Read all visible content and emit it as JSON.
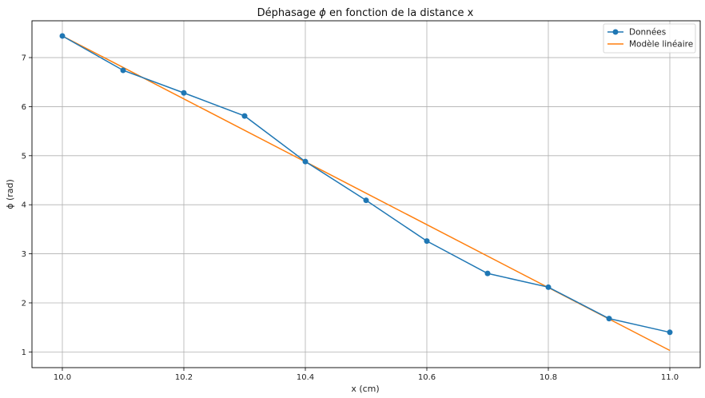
{
  "chart_data": {
    "type": "line",
    "title_prefix": "Déphasage ",
    "title_symbol": "ϕ",
    "title_suffix": " en fonction de la distance x",
    "xlabel": "x (cm)",
    "ylabel": "ϕ (rad)",
    "xlim": [
      9.95,
      11.05
    ],
    "ylim": [
      0.68,
      7.75
    ],
    "xticks": [
      10.0,
      10.2,
      10.4,
      10.6,
      10.8,
      11.0
    ],
    "xtick_labels": [
      "10.0",
      "10.2",
      "10.4",
      "10.6",
      "10.8",
      "11.0"
    ],
    "yticks": [
      1,
      2,
      3,
      4,
      5,
      6,
      7
    ],
    "ytick_labels": [
      "1",
      "2",
      "3",
      "4",
      "5",
      "6",
      "7"
    ],
    "grid": true,
    "legend_position": "top-right",
    "series": [
      {
        "name": "Données",
        "color": "#1f77b4",
        "marker": "circle",
        "x": [
          10.0,
          10.1,
          10.2,
          10.3,
          10.4,
          10.5,
          10.6,
          10.7,
          10.8,
          10.9,
          11.0
        ],
        "y": [
          7.44,
          6.74,
          6.28,
          5.81,
          4.88,
          4.09,
          3.26,
          2.6,
          2.32,
          1.68,
          1.4
        ]
      },
      {
        "name": "Modèle linéaire",
        "color": "#ff7f0e",
        "marker": "none",
        "x": [
          10.0,
          11.0
        ],
        "y": [
          7.44,
          1.03
        ]
      }
    ]
  }
}
